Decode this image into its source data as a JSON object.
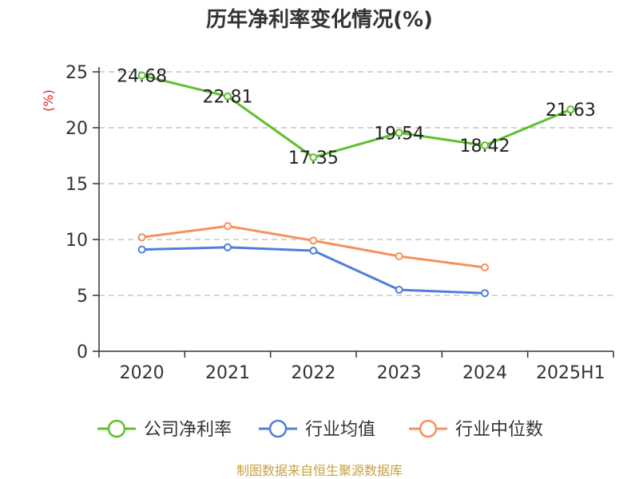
{
  "chart_data": {
    "type": "line",
    "title": "历年净利率变化情况(%)",
    "ylabel": "(%)",
    "categories": [
      "2020",
      "2021",
      "2022",
      "2023",
      "2024",
      "2025H1"
    ],
    "ylim": [
      0,
      25
    ],
    "yticks": [
      0,
      5,
      10,
      15,
      20,
      25
    ],
    "grid": true,
    "legend_position": "bottom",
    "series": [
      {
        "name": "公司净利率",
        "color": "#5dc02e",
        "values": [
          24.68,
          22.81,
          17.35,
          19.54,
          18.42,
          21.63
        ],
        "labels": [
          "24.68",
          "22.81",
          "17.35",
          "19.54",
          "18.42",
          "21.63"
        ],
        "show_labels": true
      },
      {
        "name": "行业均值",
        "color": "#4f7fd9",
        "values": [
          9.1,
          9.3,
          9.0,
          5.5,
          5.2,
          null
        ],
        "show_labels": false
      },
      {
        "name": "行业中位数",
        "color": "#f5915c",
        "values": [
          10.2,
          11.2,
          9.9,
          8.5,
          7.5,
          null
        ],
        "show_labels": false
      }
    ],
    "source": "制图数据来自恒生聚源数据库",
    "colors": {
      "unit": "#e02020",
      "source": "#c8a040",
      "axis": "#333333",
      "grid": "#bbbbbb"
    }
  }
}
